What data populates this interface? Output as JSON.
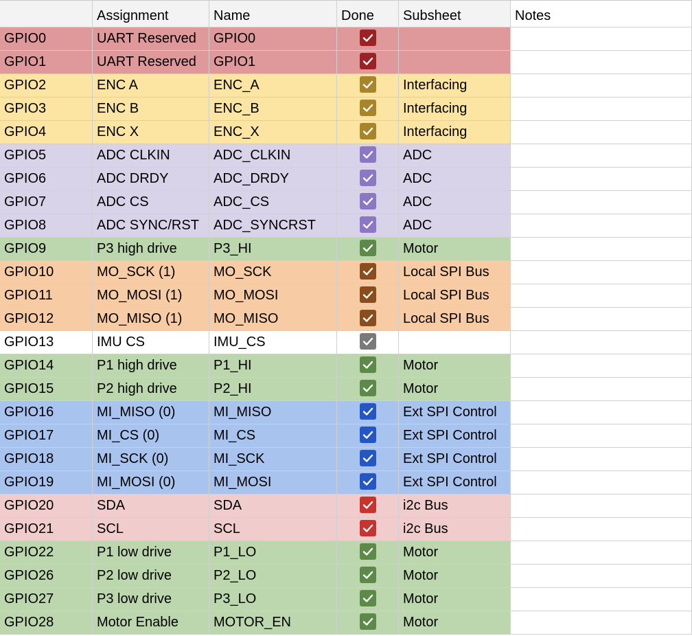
{
  "headers": [
    "",
    "Assignment",
    "Name",
    "Done",
    "Subsheet",
    "Notes"
  ],
  "rows": [
    {
      "gpio": "GPIO0",
      "assignment": "UART Reserved",
      "name": "GPIO0",
      "done": true,
      "subsheet": "",
      "bg": "#e0999a",
      "check": "#9b2124"
    },
    {
      "gpio": "GPIO1",
      "assignment": "UART Reserved",
      "name": "GPIO1",
      "done": true,
      "subsheet": "",
      "bg": "#e0999a",
      "check": "#9b2124"
    },
    {
      "gpio": "GPIO2",
      "assignment": "ENC A",
      "name": "ENC_A",
      "done": true,
      "subsheet": "Interfacing",
      "bg": "#fce5a3",
      "check": "#a8852a"
    },
    {
      "gpio": "GPIO3",
      "assignment": "ENC B",
      "name": "ENC_B",
      "done": true,
      "subsheet": "Interfacing",
      "bg": "#fce5a3",
      "check": "#a8852a"
    },
    {
      "gpio": "GPIO4",
      "assignment": "ENC X",
      "name": "ENC_X",
      "done": true,
      "subsheet": "Interfacing",
      "bg": "#fce5a3",
      "check": "#a8852a"
    },
    {
      "gpio": "GPIO5",
      "assignment": "ADC CLKIN",
      "name": "ADC_CLKIN",
      "done": true,
      "subsheet": "ADC",
      "bg": "#d9d3ea",
      "check": "#8a78c4"
    },
    {
      "gpio": "GPIO6",
      "assignment": "ADC DRDY",
      "name": "ADC_DRDY",
      "done": true,
      "subsheet": "ADC",
      "bg": "#d9d3ea",
      "check": "#8a78c4"
    },
    {
      "gpio": "GPIO7",
      "assignment": "ADC CS",
      "name": "ADC_CS",
      "done": true,
      "subsheet": "ADC",
      "bg": "#d9d3ea",
      "check": "#8a78c4"
    },
    {
      "gpio": "GPIO8",
      "assignment": "ADC SYNC/RST",
      "name": "ADC_SYNCRST",
      "done": true,
      "subsheet": "ADC",
      "bg": "#d9d3ea",
      "check": "#8a78c4"
    },
    {
      "gpio": "GPIO9",
      "assignment": "P3 high drive",
      "name": "P3_HI",
      "done": true,
      "subsheet": "Motor",
      "bg": "#bcd6ad",
      "check": "#5d8a49"
    },
    {
      "gpio": "GPIO10",
      "assignment": "MO_SCK (1)",
      "name": "MO_SCK",
      "done": true,
      "subsheet": "Local SPI Bus",
      "bg": "#f7cba4",
      "check": "#8a4e1e"
    },
    {
      "gpio": "GPIO11",
      "assignment": "MO_MOSI (1)",
      "name": "MO_MOSI",
      "done": true,
      "subsheet": "Local SPI Bus",
      "bg": "#f7cba4",
      "check": "#8a4e1e"
    },
    {
      "gpio": "GPIO12",
      "assignment": "MO_MISO (1)",
      "name": "MO_MISO",
      "done": true,
      "subsheet": "Local SPI Bus",
      "bg": "#f7cba4",
      "check": "#8a4e1e"
    },
    {
      "gpio": "GPIO13",
      "assignment": "IMU CS",
      "name": "IMU_CS",
      "done": true,
      "subsheet": "",
      "bg": "#ffffff",
      "check": "#7a7a7a"
    },
    {
      "gpio": "GPIO14",
      "assignment": "P1 high drive",
      "name": "P1_HI",
      "done": true,
      "subsheet": "Motor",
      "bg": "#bcd6ad",
      "check": "#5d8a49"
    },
    {
      "gpio": "GPIO15",
      "assignment": "P2 high drive",
      "name": "P2_HI",
      "done": true,
      "subsheet": "Motor",
      "bg": "#bcd6ad",
      "check": "#5d8a49"
    },
    {
      "gpio": "GPIO16",
      "assignment": "MI_MISO (0)",
      "name": "MI_MISO",
      "done": true,
      "subsheet": "Ext SPI Control",
      "bg": "#a9c3ef",
      "check": "#2457c5"
    },
    {
      "gpio": "GPIO17",
      "assignment": "MI_CS  (0)",
      "name": "MI_CS",
      "done": true,
      "subsheet": "Ext SPI Control",
      "bg": "#a9c3ef",
      "check": "#2457c5"
    },
    {
      "gpio": "GPIO18",
      "assignment": "MI_SCK  (0)",
      "name": "MI_SCK",
      "done": true,
      "subsheet": "Ext SPI Control",
      "bg": "#a9c3ef",
      "check": "#2457c5"
    },
    {
      "gpio": "GPIO19",
      "assignment": "MI_MOSI  (0)",
      "name": "MI_MOSI",
      "done": true,
      "subsheet": "Ext SPI Control",
      "bg": "#a9c3ef",
      "check": "#2457c5"
    },
    {
      "gpio": "GPIO20",
      "assignment": "SDA",
      "name": "SDA",
      "done": true,
      "subsheet": "i2c Bus",
      "bg": "#f1cccc",
      "check": "#c7342f"
    },
    {
      "gpio": "GPIO21",
      "assignment": "SCL",
      "name": "SCL",
      "done": true,
      "subsheet": "i2c Bus",
      "bg": "#f1cccc",
      "check": "#c7342f"
    },
    {
      "gpio": "GPIO22",
      "assignment": "P1 low drive",
      "name": "P1_LO",
      "done": true,
      "subsheet": "Motor",
      "bg": "#bcd6ad",
      "check": "#5d8a49"
    },
    {
      "gpio": "GPIO26",
      "assignment": "P2 low drive",
      "name": "P2_LO",
      "done": true,
      "subsheet": "Motor",
      "bg": "#bcd6ad",
      "check": "#5d8a49"
    },
    {
      "gpio": "GPIO27",
      "assignment": "P3 low drive",
      "name": "P3_LO",
      "done": true,
      "subsheet": "Motor",
      "bg": "#bcd6ad",
      "check": "#5d8a49"
    },
    {
      "gpio": "GPIO28",
      "assignment": "Motor Enable",
      "name": "MOTOR_EN",
      "done": true,
      "subsheet": "Motor",
      "bg": "#bcd6ad",
      "check": "#5d8a49"
    }
  ]
}
